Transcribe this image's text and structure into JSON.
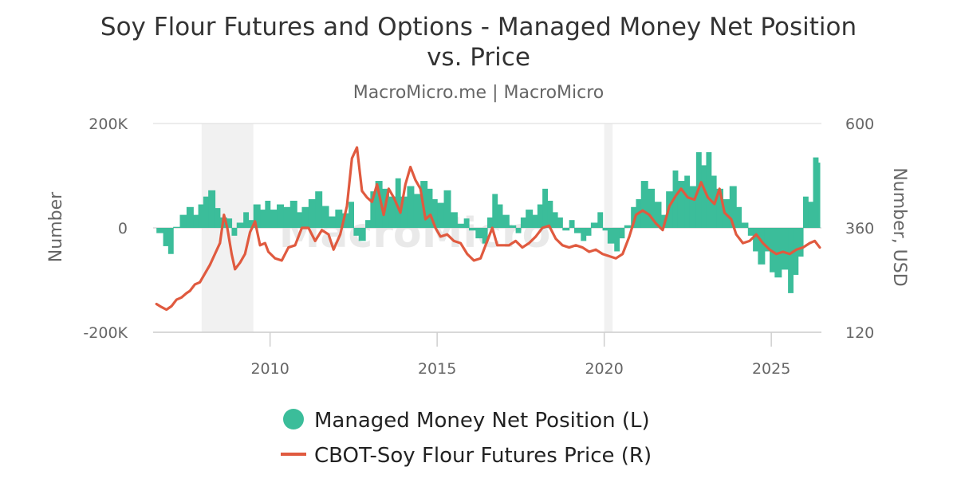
{
  "chart_data": {
    "type": "bar+line",
    "title": "Soy Flour Futures and Options - Managed Money Net Position vs. Price",
    "title_lines": [
      "Soy Flour Futures and Options - Managed Money Net Position",
      "vs. Price"
    ],
    "subtitle": "MacroMicro.me | MacroMicro",
    "watermark": "MacroMicro",
    "y_left": {
      "label": "Number",
      "range": [
        -200000,
        200000
      ],
      "ticks": [
        -200000,
        0,
        200000
      ],
      "tick_labels": [
        "-200K",
        "0",
        "200K"
      ]
    },
    "y_right": {
      "label": "Number, USD",
      "range": [
        120,
        600
      ],
      "ticks": [
        120,
        360,
        600
      ],
      "tick_labels": [
        "120",
        "360",
        "600"
      ]
    },
    "x_axis": {
      "range": [
        2006.5,
        2026.5
      ],
      "ticks": [
        2010,
        2015,
        2020,
        2025
      ],
      "tick_labels": [
        "2010",
        "2015",
        "2020",
        "2025"
      ]
    },
    "shaded_periods": [
      {
        "start": 2007.95,
        "end": 2009.5
      },
      {
        "start": 2020.0,
        "end": 2020.25
      }
    ],
    "legend_position": "bottom-center",
    "series": [
      {
        "name": "Managed Money Net Position (L)",
        "type": "bar",
        "axis": "left",
        "color": "#3bbd9a",
        "points": [
          [
            2006.6,
            -10000
          ],
          [
            2006.8,
            -35000
          ],
          [
            2006.95,
            -50000
          ],
          [
            2007.1,
            2000
          ],
          [
            2007.3,
            25000
          ],
          [
            2007.5,
            40000
          ],
          [
            2007.7,
            25000
          ],
          [
            2007.85,
            45000
          ],
          [
            2008.0,
            60000
          ],
          [
            2008.15,
            72000
          ],
          [
            2008.35,
            38000
          ],
          [
            2008.5,
            20000
          ],
          [
            2008.7,
            18000
          ],
          [
            2008.85,
            -15000
          ],
          [
            2009.0,
            10000
          ],
          [
            2009.2,
            30000
          ],
          [
            2009.35,
            15000
          ],
          [
            2009.5,
            45000
          ],
          [
            2009.7,
            35000
          ],
          [
            2009.85,
            52000
          ],
          [
            2010.0,
            35000
          ],
          [
            2010.2,
            45000
          ],
          [
            2010.4,
            40000
          ],
          [
            2010.6,
            52000
          ],
          [
            2010.8,
            30000
          ],
          [
            2010.95,
            40000
          ],
          [
            2011.15,
            55000
          ],
          [
            2011.35,
            70000
          ],
          [
            2011.55,
            42000
          ],
          [
            2011.75,
            22000
          ],
          [
            2011.95,
            35000
          ],
          [
            2012.15,
            28000
          ],
          [
            2012.35,
            50000
          ],
          [
            2012.5,
            -15000
          ],
          [
            2012.65,
            -25000
          ],
          [
            2012.85,
            15000
          ],
          [
            2013.0,
            70000
          ],
          [
            2013.15,
            90000
          ],
          [
            2013.35,
            75000
          ],
          [
            2013.55,
            60000
          ],
          [
            2013.75,
            95000
          ],
          [
            2013.9,
            60000
          ],
          [
            2014.1,
            80000
          ],
          [
            2014.3,
            65000
          ],
          [
            2014.5,
            90000
          ],
          [
            2014.7,
            75000
          ],
          [
            2014.85,
            55000
          ],
          [
            2015.0,
            48000
          ],
          [
            2015.2,
            72000
          ],
          [
            2015.4,
            30000
          ],
          [
            2015.6,
            8000
          ],
          [
            2015.8,
            18000
          ],
          [
            2015.95,
            -5000
          ],
          [
            2016.15,
            -20000
          ],
          [
            2016.35,
            -30000
          ],
          [
            2016.5,
            20000
          ],
          [
            2016.65,
            65000
          ],
          [
            2016.8,
            45000
          ],
          [
            2016.95,
            25000
          ],
          [
            2017.15,
            5000
          ],
          [
            2017.35,
            -10000
          ],
          [
            2017.5,
            20000
          ],
          [
            2017.65,
            35000
          ],
          [
            2017.85,
            25000
          ],
          [
            2018.0,
            45000
          ],
          [
            2018.15,
            75000
          ],
          [
            2018.3,
            52000
          ],
          [
            2018.45,
            30000
          ],
          [
            2018.6,
            20000
          ],
          [
            2018.75,
            -5000
          ],
          [
            2018.95,
            15000
          ],
          [
            2019.1,
            -10000
          ],
          [
            2019.3,
            -25000
          ],
          [
            2019.45,
            -15000
          ],
          [
            2019.6,
            10000
          ],
          [
            2019.8,
            30000
          ],
          [
            2019.95,
            -5000
          ],
          [
            2020.1,
            -30000
          ],
          [
            2020.3,
            -45000
          ],
          [
            2020.45,
            -20000
          ],
          [
            2020.6,
            5000
          ],
          [
            2020.8,
            40000
          ],
          [
            2020.95,
            55000
          ],
          [
            2021.1,
            90000
          ],
          [
            2021.3,
            75000
          ],
          [
            2021.5,
            50000
          ],
          [
            2021.7,
            25000
          ],
          [
            2021.85,
            70000
          ],
          [
            2022.05,
            110000
          ],
          [
            2022.2,
            90000
          ],
          [
            2022.4,
            100000
          ],
          [
            2022.55,
            80000
          ],
          [
            2022.75,
            145000
          ],
          [
            2022.9,
            120000
          ],
          [
            2023.05,
            145000
          ],
          [
            2023.2,
            100000
          ],
          [
            2023.35,
            75000
          ],
          [
            2023.55,
            55000
          ],
          [
            2023.75,
            80000
          ],
          [
            2023.95,
            40000
          ],
          [
            2024.1,
            10000
          ],
          [
            2024.3,
            -15000
          ],
          [
            2024.45,
            -45000
          ],
          [
            2024.6,
            -70000
          ],
          [
            2024.8,
            -45000
          ],
          [
            2024.95,
            -85000
          ],
          [
            2025.1,
            -95000
          ],
          [
            2025.3,
            -80000
          ],
          [
            2025.5,
            -125000
          ],
          [
            2025.65,
            -90000
          ],
          [
            2025.8,
            -55000
          ],
          [
            2025.95,
            60000
          ],
          [
            2026.1,
            50000
          ],
          [
            2026.25,
            135000
          ],
          [
            2026.4,
            125000
          ]
        ]
      },
      {
        "name": "CBOT-Soy Flour Futures Price (R)",
        "type": "line",
        "axis": "right",
        "color": "#e05a3f",
        "points": [
          [
            2006.6,
            185
          ],
          [
            2006.75,
            178
          ],
          [
            2006.9,
            172
          ],
          [
            2007.05,
            180
          ],
          [
            2007.2,
            195
          ],
          [
            2007.35,
            200
          ],
          [
            2007.5,
            210
          ],
          [
            2007.6,
            215
          ],
          [
            2007.75,
            230
          ],
          [
            2007.9,
            235
          ],
          [
            2008.05,
            255
          ],
          [
            2008.2,
            275
          ],
          [
            2008.35,
            300
          ],
          [
            2008.5,
            325
          ],
          [
            2008.62,
            390
          ],
          [
            2008.72,
            360
          ],
          [
            2008.85,
            300
          ],
          [
            2008.95,
            265
          ],
          [
            2009.1,
            280
          ],
          [
            2009.25,
            300
          ],
          [
            2009.4,
            350
          ],
          [
            2009.55,
            375
          ],
          [
            2009.7,
            320
          ],
          [
            2009.85,
            325
          ],
          [
            2009.95,
            305
          ],
          [
            2010.15,
            290
          ],
          [
            2010.35,
            285
          ],
          [
            2010.55,
            315
          ],
          [
            2010.75,
            320
          ],
          [
            2010.95,
            360
          ],
          [
            2011.15,
            360
          ],
          [
            2011.35,
            330
          ],
          [
            2011.55,
            355
          ],
          [
            2011.75,
            345
          ],
          [
            2011.9,
            310
          ],
          [
            2012.1,
            345
          ],
          [
            2012.3,
            410
          ],
          [
            2012.45,
            520
          ],
          [
            2012.6,
            545
          ],
          [
            2012.75,
            445
          ],
          [
            2012.9,
            430
          ],
          [
            2013.05,
            420
          ],
          [
            2013.2,
            460
          ],
          [
            2013.4,
            390
          ],
          [
            2013.55,
            450
          ],
          [
            2013.7,
            430
          ],
          [
            2013.9,
            395
          ],
          [
            2014.05,
            460
          ],
          [
            2014.2,
            500
          ],
          [
            2014.35,
            470
          ],
          [
            2014.5,
            450
          ],
          [
            2014.65,
            380
          ],
          [
            2014.8,
            390
          ],
          [
            2014.95,
            360
          ],
          [
            2015.1,
            340
          ],
          [
            2015.3,
            345
          ],
          [
            2015.5,
            330
          ],
          [
            2015.7,
            325
          ],
          [
            2015.9,
            300
          ],
          [
            2016.1,
            285
          ],
          [
            2016.3,
            290
          ],
          [
            2016.5,
            330
          ],
          [
            2016.65,
            360
          ],
          [
            2016.8,
            320
          ],
          [
            2016.95,
            320
          ],
          [
            2017.15,
            320
          ],
          [
            2017.35,
            330
          ],
          [
            2017.55,
            315
          ],
          [
            2017.75,
            325
          ],
          [
            2017.95,
            340
          ],
          [
            2018.15,
            360
          ],
          [
            2018.35,
            365
          ],
          [
            2018.55,
            335
          ],
          [
            2018.75,
            320
          ],
          [
            2018.95,
            315
          ],
          [
            2019.15,
            320
          ],
          [
            2019.35,
            315
          ],
          [
            2019.55,
            305
          ],
          [
            2019.75,
            310
          ],
          [
            2019.95,
            300
          ],
          [
            2020.15,
            295
          ],
          [
            2020.35,
            290
          ],
          [
            2020.55,
            300
          ],
          [
            2020.75,
            340
          ],
          [
            2020.95,
            390
          ],
          [
            2021.15,
            400
          ],
          [
            2021.35,
            390
          ],
          [
            2021.55,
            370
          ],
          [
            2021.75,
            355
          ],
          [
            2021.95,
            410
          ],
          [
            2022.15,
            435
          ],
          [
            2022.3,
            450
          ],
          [
            2022.5,
            430
          ],
          [
            2022.7,
            425
          ],
          [
            2022.9,
            465
          ],
          [
            2023.1,
            430
          ],
          [
            2023.3,
            415
          ],
          [
            2023.45,
            450
          ],
          [
            2023.6,
            395
          ],
          [
            2023.8,
            380
          ],
          [
            2023.95,
            345
          ],
          [
            2024.15,
            325
          ],
          [
            2024.35,
            330
          ],
          [
            2024.55,
            345
          ],
          [
            2024.75,
            325
          ],
          [
            2024.95,
            310
          ],
          [
            2025.15,
            300
          ],
          [
            2025.35,
            305
          ],
          [
            2025.55,
            300
          ],
          [
            2025.75,
            310
          ],
          [
            2025.95,
            315
          ],
          [
            2026.15,
            325
          ],
          [
            2026.3,
            330
          ],
          [
            2026.45,
            315
          ]
        ]
      }
    ]
  }
}
